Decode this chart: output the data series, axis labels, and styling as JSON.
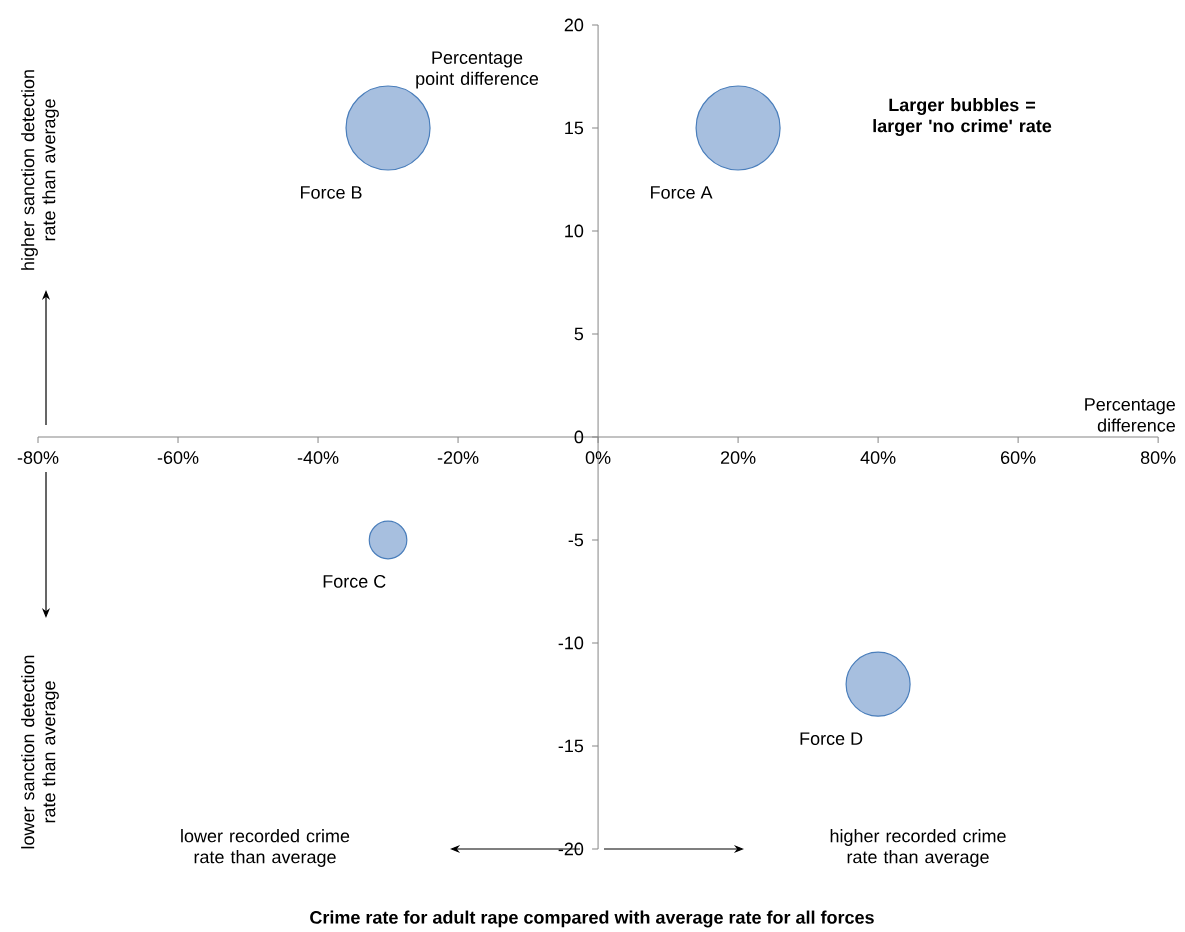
{
  "chart_data": {
    "type": "bubble",
    "xlabel": "Percentage difference",
    "ylabel": "Percentage point difference",
    "annotations": [
      "Larger bubbles = larger 'no crime' rate",
      "higher sanction detection rate than average",
      "lower sanction detection rate than average",
      "lower recorded crime rate than average",
      "higher recorded crime rate than average",
      "Crime rate for adult rape compared with average rate for all forces"
    ],
    "xlim": [
      -80,
      80
    ],
    "xticks": [
      {
        "value": -80,
        "label": "-80%"
      },
      {
        "value": -60,
        "label": "-60%"
      },
      {
        "value": -40,
        "label": "-40%"
      },
      {
        "value": -20,
        "label": "-20%"
      },
      {
        "value": 0,
        "label": "0%"
      },
      {
        "value": 20,
        "label": "20%"
      },
      {
        "value": 40,
        "label": "40%"
      },
      {
        "value": 60,
        "label": "60%"
      },
      {
        "value": 80,
        "label": "80%"
      }
    ],
    "ylim": [
      -20,
      20
    ],
    "yticks": [
      -20,
      -15,
      -10,
      -5,
      0,
      5,
      10,
      15,
      20
    ],
    "series": [
      {
        "name": "Force A",
        "color": "#a7bfdf",
        "x": [
          20
        ],
        "values": [
          15
        ],
        "sizes": [
          1
        ]
      },
      {
        "name": "Force B",
        "color": "#a7bfdf",
        "x": [
          -30
        ],
        "values": [
          15
        ],
        "sizes": [
          1
        ]
      },
      {
        "name": "Force C",
        "color": "#a7bfdf",
        "x": [
          -30
        ],
        "values": [
          -5
        ],
        "sizes": [
          0.2
        ]
      },
      {
        "name": "Force D",
        "color": "#a7bfdf",
        "x": [
          40
        ],
        "values": [
          -12
        ],
        "sizes": [
          0.58
        ]
      }
    ]
  }
}
